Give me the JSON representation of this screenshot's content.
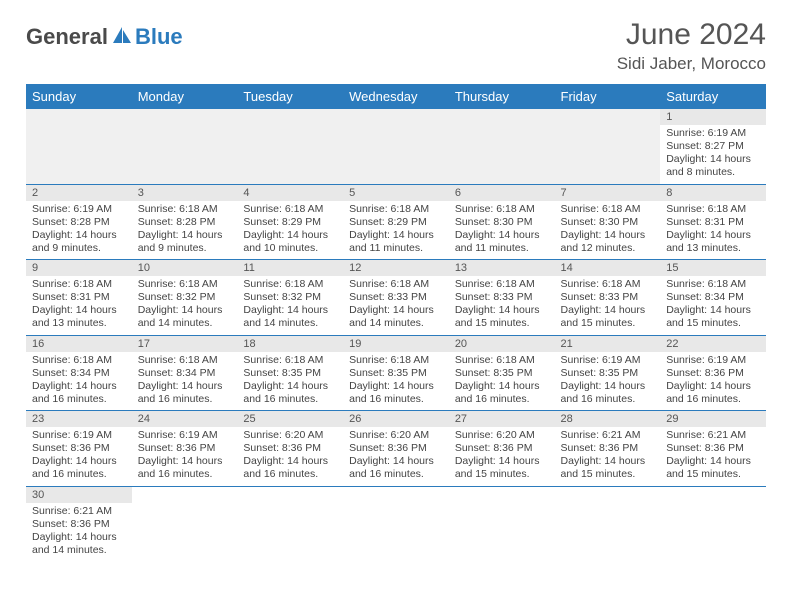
{
  "brand": {
    "general": "General",
    "blue": "Blue"
  },
  "title": "June 2024",
  "location": "Sidi Jaber, Morocco",
  "colors": {
    "header_bg": "#2b7bbd",
    "header_fg": "#ffffff",
    "daynum_bg": "#e8e8e8",
    "border": "#2b7bbd",
    "empty_bg": "#f0f0f0"
  },
  "day_headers": [
    "Sunday",
    "Monday",
    "Tuesday",
    "Wednesday",
    "Thursday",
    "Friday",
    "Saturday"
  ],
  "weeks": [
    [
      null,
      null,
      null,
      null,
      null,
      null,
      {
        "n": "1",
        "sr": "Sunrise: 6:19 AM",
        "ss": "Sunset: 8:27 PM",
        "dl1": "Daylight: 14 hours",
        "dl2": "and 8 minutes."
      }
    ],
    [
      {
        "n": "2",
        "sr": "Sunrise: 6:19 AM",
        "ss": "Sunset: 8:28 PM",
        "dl1": "Daylight: 14 hours",
        "dl2": "and 9 minutes."
      },
      {
        "n": "3",
        "sr": "Sunrise: 6:18 AM",
        "ss": "Sunset: 8:28 PM",
        "dl1": "Daylight: 14 hours",
        "dl2": "and 9 minutes."
      },
      {
        "n": "4",
        "sr": "Sunrise: 6:18 AM",
        "ss": "Sunset: 8:29 PM",
        "dl1": "Daylight: 14 hours",
        "dl2": "and 10 minutes."
      },
      {
        "n": "5",
        "sr": "Sunrise: 6:18 AM",
        "ss": "Sunset: 8:29 PM",
        "dl1": "Daylight: 14 hours",
        "dl2": "and 11 minutes."
      },
      {
        "n": "6",
        "sr": "Sunrise: 6:18 AM",
        "ss": "Sunset: 8:30 PM",
        "dl1": "Daylight: 14 hours",
        "dl2": "and 11 minutes."
      },
      {
        "n": "7",
        "sr": "Sunrise: 6:18 AM",
        "ss": "Sunset: 8:30 PM",
        "dl1": "Daylight: 14 hours",
        "dl2": "and 12 minutes."
      },
      {
        "n": "8",
        "sr": "Sunrise: 6:18 AM",
        "ss": "Sunset: 8:31 PM",
        "dl1": "Daylight: 14 hours",
        "dl2": "and 13 minutes."
      }
    ],
    [
      {
        "n": "9",
        "sr": "Sunrise: 6:18 AM",
        "ss": "Sunset: 8:31 PM",
        "dl1": "Daylight: 14 hours",
        "dl2": "and 13 minutes."
      },
      {
        "n": "10",
        "sr": "Sunrise: 6:18 AM",
        "ss": "Sunset: 8:32 PM",
        "dl1": "Daylight: 14 hours",
        "dl2": "and 14 minutes."
      },
      {
        "n": "11",
        "sr": "Sunrise: 6:18 AM",
        "ss": "Sunset: 8:32 PM",
        "dl1": "Daylight: 14 hours",
        "dl2": "and 14 minutes."
      },
      {
        "n": "12",
        "sr": "Sunrise: 6:18 AM",
        "ss": "Sunset: 8:33 PM",
        "dl1": "Daylight: 14 hours",
        "dl2": "and 14 minutes."
      },
      {
        "n": "13",
        "sr": "Sunrise: 6:18 AM",
        "ss": "Sunset: 8:33 PM",
        "dl1": "Daylight: 14 hours",
        "dl2": "and 15 minutes."
      },
      {
        "n": "14",
        "sr": "Sunrise: 6:18 AM",
        "ss": "Sunset: 8:33 PM",
        "dl1": "Daylight: 14 hours",
        "dl2": "and 15 minutes."
      },
      {
        "n": "15",
        "sr": "Sunrise: 6:18 AM",
        "ss": "Sunset: 8:34 PM",
        "dl1": "Daylight: 14 hours",
        "dl2": "and 15 minutes."
      }
    ],
    [
      {
        "n": "16",
        "sr": "Sunrise: 6:18 AM",
        "ss": "Sunset: 8:34 PM",
        "dl1": "Daylight: 14 hours",
        "dl2": "and 16 minutes."
      },
      {
        "n": "17",
        "sr": "Sunrise: 6:18 AM",
        "ss": "Sunset: 8:34 PM",
        "dl1": "Daylight: 14 hours",
        "dl2": "and 16 minutes."
      },
      {
        "n": "18",
        "sr": "Sunrise: 6:18 AM",
        "ss": "Sunset: 8:35 PM",
        "dl1": "Daylight: 14 hours",
        "dl2": "and 16 minutes."
      },
      {
        "n": "19",
        "sr": "Sunrise: 6:18 AM",
        "ss": "Sunset: 8:35 PM",
        "dl1": "Daylight: 14 hours",
        "dl2": "and 16 minutes."
      },
      {
        "n": "20",
        "sr": "Sunrise: 6:18 AM",
        "ss": "Sunset: 8:35 PM",
        "dl1": "Daylight: 14 hours",
        "dl2": "and 16 minutes."
      },
      {
        "n": "21",
        "sr": "Sunrise: 6:19 AM",
        "ss": "Sunset: 8:35 PM",
        "dl1": "Daylight: 14 hours",
        "dl2": "and 16 minutes."
      },
      {
        "n": "22",
        "sr": "Sunrise: 6:19 AM",
        "ss": "Sunset: 8:36 PM",
        "dl1": "Daylight: 14 hours",
        "dl2": "and 16 minutes."
      }
    ],
    [
      {
        "n": "23",
        "sr": "Sunrise: 6:19 AM",
        "ss": "Sunset: 8:36 PM",
        "dl1": "Daylight: 14 hours",
        "dl2": "and 16 minutes."
      },
      {
        "n": "24",
        "sr": "Sunrise: 6:19 AM",
        "ss": "Sunset: 8:36 PM",
        "dl1": "Daylight: 14 hours",
        "dl2": "and 16 minutes."
      },
      {
        "n": "25",
        "sr": "Sunrise: 6:20 AM",
        "ss": "Sunset: 8:36 PM",
        "dl1": "Daylight: 14 hours",
        "dl2": "and 16 minutes."
      },
      {
        "n": "26",
        "sr": "Sunrise: 6:20 AM",
        "ss": "Sunset: 8:36 PM",
        "dl1": "Daylight: 14 hours",
        "dl2": "and 16 minutes."
      },
      {
        "n": "27",
        "sr": "Sunrise: 6:20 AM",
        "ss": "Sunset: 8:36 PM",
        "dl1": "Daylight: 14 hours",
        "dl2": "and 15 minutes."
      },
      {
        "n": "28",
        "sr": "Sunrise: 6:21 AM",
        "ss": "Sunset: 8:36 PM",
        "dl1": "Daylight: 14 hours",
        "dl2": "and 15 minutes."
      },
      {
        "n": "29",
        "sr": "Sunrise: 6:21 AM",
        "ss": "Sunset: 8:36 PM",
        "dl1": "Daylight: 14 hours",
        "dl2": "and 15 minutes."
      }
    ],
    [
      {
        "n": "30",
        "sr": "Sunrise: 6:21 AM",
        "ss": "Sunset: 8:36 PM",
        "dl1": "Daylight: 14 hours",
        "dl2": "and 14 minutes."
      },
      null,
      null,
      null,
      null,
      null,
      null
    ]
  ]
}
